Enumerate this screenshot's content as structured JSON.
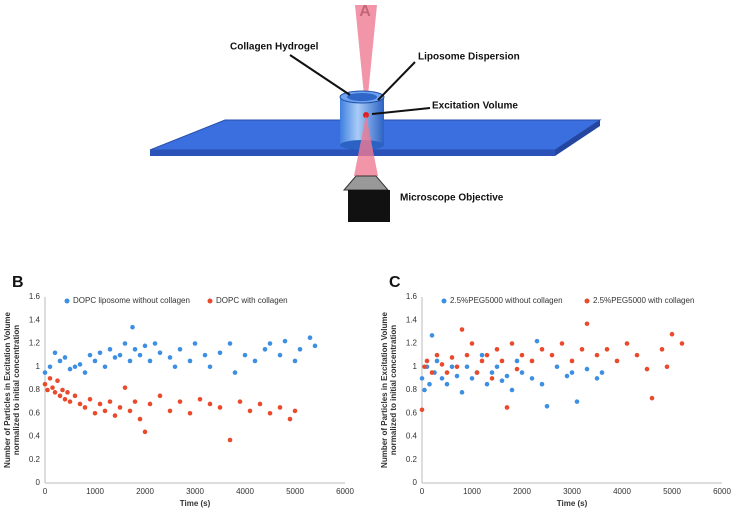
{
  "panel_a": {
    "label": "A",
    "labels": [
      "Collagen Hydrogel",
      "Liposome Dispersion",
      "Excitation Volume",
      "Microscope Objective"
    ]
  },
  "chart_data": [
    {
      "type": "scatter",
      "panel": "B",
      "ylabel": [
        "Number of Particles in Excitation Volume",
        "normalized to initial concentration"
      ],
      "xlabel": "Time (s)",
      "xlim": [
        0,
        6000
      ],
      "xticks": [
        0,
        1000,
        2000,
        3000,
        4000,
        5000,
        6000
      ],
      "ylim": [
        0,
        1.6
      ],
      "yticks": [
        0,
        0.2,
        0.4,
        0.6,
        0.8,
        1,
        1.2,
        1.4,
        1.6
      ],
      "legend": "top",
      "grid": false,
      "series": [
        {
          "name": "DOPC liposome without collagen",
          "color": "#3d8fe3",
          "x": [
            0,
            100,
            200,
            300,
            400,
            500,
            600,
            700,
            800,
            900,
            1000,
            1100,
            1200,
            1300,
            1400,
            1500,
            1600,
            1700,
            1750,
            1800,
            1900,
            2000,
            2100,
            2200,
            2300,
            2500,
            2600,
            2700,
            2900,
            3000,
            3200,
            3300,
            3500,
            3700,
            3800,
            4000,
            4200,
            4400,
            4500,
            4700,
            4800,
            5000,
            5100,
            5300,
            5400
          ],
          "values": [
            0.95,
            1.0,
            1.12,
            1.05,
            1.08,
            0.98,
            1.0,
            1.02,
            0.95,
            1.1,
            1.05,
            1.12,
            1.0,
            1.15,
            1.08,
            1.1,
            1.2,
            1.05,
            1.34,
            1.15,
            1.1,
            1.18,
            1.05,
            1.2,
            1.12,
            1.08,
            1.0,
            1.15,
            1.05,
            1.2,
            1.1,
            1.0,
            1.12,
            1.2,
            0.95,
            1.1,
            1.05,
            1.15,
            1.2,
            1.1,
            1.22,
            1.05,
            1.15,
            1.25,
            1.18
          ]
        },
        {
          "name": "DOPC with collagen",
          "color": "#ea4a2c",
          "x": [
            0,
            50,
            100,
            150,
            200,
            250,
            300,
            350,
            400,
            450,
            500,
            600,
            700,
            800,
            900,
            1000,
            1100,
            1200,
            1300,
            1400,
            1500,
            1600,
            1700,
            1800,
            1900,
            2000,
            2100,
            2300,
            2500,
            2700,
            2900,
            3100,
            3300,
            3500,
            3700,
            3900,
            4100,
            4300,
            4500,
            4700,
            4900,
            5000
          ],
          "values": [
            0.85,
            0.8,
            0.9,
            0.82,
            0.78,
            0.88,
            0.75,
            0.8,
            0.72,
            0.78,
            0.7,
            0.75,
            0.68,
            0.65,
            0.72,
            0.6,
            0.68,
            0.62,
            0.7,
            0.58,
            0.65,
            0.82,
            0.62,
            0.7,
            0.55,
            0.44,
            0.68,
            0.75,
            0.62,
            0.7,
            0.6,
            0.72,
            0.68,
            0.65,
            0.37,
            0.7,
            0.62,
            0.68,
            0.6,
            0.65,
            0.55,
            0.62
          ]
        }
      ]
    },
    {
      "type": "scatter",
      "panel": "C",
      "ylabel": [
        "Number of Particles in Excitation Volume",
        "normalized to initial concentration"
      ],
      "xlabel": "Time (s)",
      "xlim": [
        0,
        6000
      ],
      "xticks": [
        0,
        1000,
        2000,
        3000,
        4000,
        5000,
        6000
      ],
      "ylim": [
        0,
        1.6
      ],
      "yticks": [
        0,
        0.2,
        0.4,
        0.6,
        0.8,
        1,
        1.2,
        1.4,
        1.6
      ],
      "legend": "top",
      "grid": false,
      "series": [
        {
          "name": "2.5%PEG5000 without collagen",
          "color": "#3d8fe3",
          "x": [
            0,
            50,
            100,
            150,
            200,
            250,
            300,
            400,
            500,
            600,
            700,
            800,
            900,
            1000,
            1100,
            1200,
            1300,
            1400,
            1500,
            1600,
            1700,
            1800,
            1900,
            2000,
            2200,
            2300,
            2400,
            2500,
            2700,
            2900,
            3000,
            3100,
            3300,
            3500,
            3600
          ],
          "values": [
            0.9,
            0.8,
            1.0,
            0.85,
            1.27,
            0.95,
            1.05,
            0.9,
            0.85,
            1.0,
            0.92,
            0.78,
            1.0,
            0.9,
            0.95,
            1.1,
            0.85,
            0.95,
            1.0,
            0.88,
            0.92,
            0.8,
            1.05,
            0.95,
            0.9,
            1.22,
            0.85,
            0.66,
            1.0,
            0.92,
            0.95,
            0.7,
            0.98,
            0.9,
            0.95
          ]
        },
        {
          "name": "2.5%PEG5000 with collagen",
          "color": "#ea4a2c",
          "x": [
            0,
            50,
            100,
            200,
            300,
            400,
            500,
            600,
            700,
            800,
            900,
            1000,
            1100,
            1200,
            1300,
            1400,
            1500,
            1600,
            1700,
            1800,
            1900,
            2000,
            2200,
            2400,
            2600,
            2800,
            3000,
            3200,
            3300,
            3500,
            3700,
            3900,
            4100,
            4300,
            4500,
            4600,
            4800,
            4900,
            5000,
            5200
          ],
          "values": [
            0.63,
            1.0,
            1.05,
            0.95,
            1.1,
            1.02,
            0.95,
            1.08,
            1.0,
            1.32,
            1.1,
            1.2,
            0.95,
            1.05,
            1.1,
            0.9,
            1.15,
            1.05,
            0.65,
            1.2,
            0.98,
            1.1,
            1.05,
            1.15,
            1.1,
            1.2,
            1.05,
            1.15,
            1.37,
            1.1,
            1.15,
            1.05,
            1.2,
            1.1,
            0.98,
            0.73,
            1.15,
            1.0,
            1.28,
            1.2
          ]
        }
      ]
    }
  ]
}
